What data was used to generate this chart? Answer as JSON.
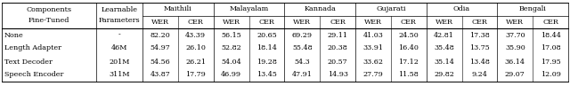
{
  "language_groups": [
    "Maithili",
    "Malayalam",
    "Kannada",
    "Gujarati",
    "Odia",
    "Bengali"
  ],
  "rows": [
    {
      "component": "None",
      "params": "-",
      "values": [
        "82.20",
        "43.39",
        "56.15",
        "20.65",
        "69.29",
        "29.11",
        "41.03",
        "24.50",
        "42.81",
        "17.38",
        "37.70",
        "18.44"
      ]
    },
    {
      "component": "Length Adapter",
      "params": "46M",
      "values": [
        "54.97",
        "26.10",
        "52.82",
        "18.14",
        "55.48",
        "20.38",
        "33.91",
        "16.40",
        "35.48",
        "13.75",
        "35.90",
        "17.08"
      ]
    },
    {
      "component": "Text Decoder",
      "params": "201M",
      "values": [
        "54.56",
        "26.21",
        "54.04",
        "19.28",
        "54.3",
        "20.57",
        "33.62",
        "17.12",
        "35.14",
        "13.48",
        "36.14",
        "17.95"
      ]
    },
    {
      "component": "Speech Encoder",
      "params": "311M",
      "values": [
        "43.87",
        "17.79",
        "46.99",
        "13.45",
        "47.91",
        "14.93",
        "27.79",
        "11.58",
        "29.82",
        "9.24",
        "29.07",
        "12.09"
      ]
    }
  ],
  "bg_color": "#ffffff",
  "text_color": "#000000",
  "line_color": "#000000",
  "font_size": 5.8,
  "header_font_size": 5.8,
  "figwidth": 6.4,
  "figheight": 1.06,
  "dpi": 100
}
